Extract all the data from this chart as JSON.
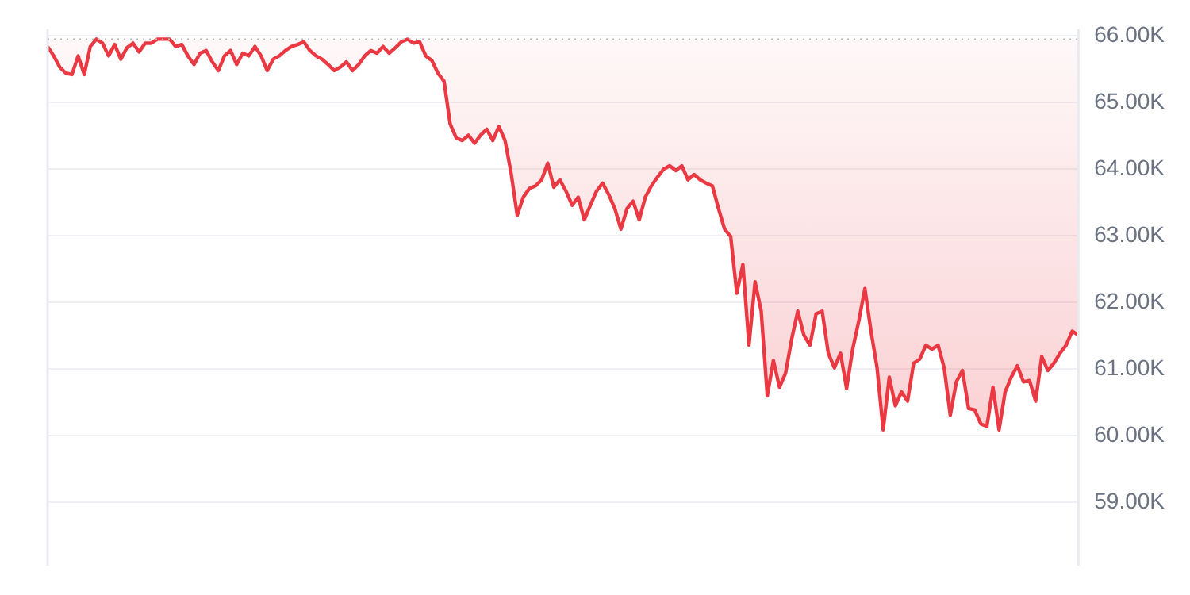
{
  "chart_data": {
    "type": "line",
    "relative": false,
    "categories": [
      null,
      null,
      null,
      null,
      null,
      null,
      null,
      null,
      null,
      null,
      null,
      null,
      null,
      null,
      null,
      null,
      null,
      null,
      null,
      null,
      null,
      null,
      null,
      null,
      null,
      null,
      null,
      null,
      null,
      null,
      null,
      null,
      null,
      null,
      null,
      null,
      null,
      null,
      null,
      null,
      null,
      null,
      null,
      null,
      null,
      null,
      null,
      null,
      null,
      null,
      null,
      null,
      null,
      null,
      null,
      null,
      null,
      null,
      null,
      null,
      null,
      null,
      null,
      null,
      null,
      null,
      null,
      null,
      null,
      null,
      null,
      null,
      null,
      null,
      null,
      null,
      null,
      null,
      null,
      null,
      null,
      null,
      null,
      null,
      null,
      null,
      null,
      null,
      null,
      null,
      null,
      null,
      null,
      null,
      null,
      null,
      null,
      null,
      null,
      null,
      null,
      null,
      null,
      null,
      null,
      null,
      null,
      null,
      null,
      null,
      null,
      null,
      null,
      null,
      null,
      null,
      null,
      null,
      null,
      null,
      null,
      null,
      null,
      null,
      null,
      null,
      null,
      null,
      null,
      null,
      null,
      null,
      null,
      null,
      null,
      null,
      null,
      null,
      null,
      null,
      null,
      null,
      null,
      null,
      null,
      null,
      null,
      null,
      null,
      null,
      null,
      null,
      null,
      null,
      null,
      null,
      null,
      null,
      null,
      null,
      null,
      null,
      null,
      null,
      null,
      null,
      null,
      null,
      null,
      null
    ],
    "series": [
      {
        "color": "#ea3943",
        "values": [
          65.84,
          65.7,
          65.53,
          65.44,
          65.42,
          65.7,
          65.42,
          65.84,
          65.95,
          65.89,
          65.7,
          65.87,
          65.65,
          65.82,
          65.89,
          65.76,
          65.89,
          65.89,
          65.95,
          65.95,
          65.95,
          65.84,
          65.87,
          65.7,
          65.57,
          65.74,
          65.78,
          65.61,
          65.48,
          65.7,
          65.78,
          65.57,
          65.74,
          65.7,
          65.84,
          65.7,
          65.48,
          65.65,
          65.7,
          65.78,
          65.84,
          65.87,
          65.91,
          65.78,
          65.7,
          65.65,
          65.57,
          65.48,
          65.53,
          65.61,
          65.48,
          65.57,
          65.7,
          65.78,
          65.74,
          65.84,
          65.74,
          65.82,
          65.91,
          65.95,
          65.89,
          65.91,
          65.7,
          65.63,
          65.44,
          65.32,
          64.68,
          64.47,
          64.43,
          64.51,
          64.39,
          64.51,
          64.6,
          64.43,
          64.64,
          64.43,
          63.94,
          63.31,
          63.58,
          63.71,
          63.75,
          63.84,
          64.09,
          63.73,
          63.84,
          63.67,
          63.46,
          63.58,
          63.24,
          63.46,
          63.67,
          63.79,
          63.62,
          63.41,
          63.1,
          63.41,
          63.52,
          63.24,
          63.58,
          63.75,
          63.88,
          64.0,
          64.05,
          63.98,
          64.05,
          63.84,
          63.92,
          63.84,
          63.79,
          63.75,
          63.41,
          63.1,
          62.99,
          62.14,
          62.57,
          61.36,
          62.31,
          61.87,
          60.6,
          61.13,
          60.73,
          60.94,
          61.45,
          61.87,
          61.51,
          61.36,
          61.83,
          61.87,
          61.24,
          61.02,
          61.24,
          60.71,
          61.3,
          61.72,
          62.21,
          61.57,
          61.02,
          60.09,
          60.88,
          60.45,
          60.66,
          60.52,
          61.09,
          61.15,
          61.36,
          61.3,
          61.36,
          61.02,
          60.31,
          60.81,
          60.98,
          60.41,
          60.39,
          60.18,
          60.14,
          60.73,
          60.09,
          60.66,
          60.88,
          61.05,
          60.81,
          60.83,
          60.52,
          61.19,
          60.98,
          61.09,
          61.24,
          61.36,
          61.57,
          61.51
        ]
      }
    ],
    "ylim": [
      58.05,
      66.1
    ],
    "yticks": [
      {
        "value": 59,
        "label": "59.00K"
      },
      {
        "value": 60,
        "label": "60.00K"
      },
      {
        "value": 61,
        "label": "61.00K"
      },
      {
        "value": 62,
        "label": "62.00K"
      },
      {
        "value": 63,
        "label": "63.00K"
      },
      {
        "value": 64,
        "label": "64.00K"
      },
      {
        "value": 65,
        "label": "65.00K"
      },
      {
        "value": 66,
        "label": "66.00K"
      }
    ],
    "ref_lines": [
      {
        "axis": "y",
        "value": 65.95,
        "color": "#bbbbbb",
        "line_style": "dotted"
      }
    ],
    "grid": "y",
    "legend": false,
    "marker": "none",
    "line_style": "solid"
  }
}
